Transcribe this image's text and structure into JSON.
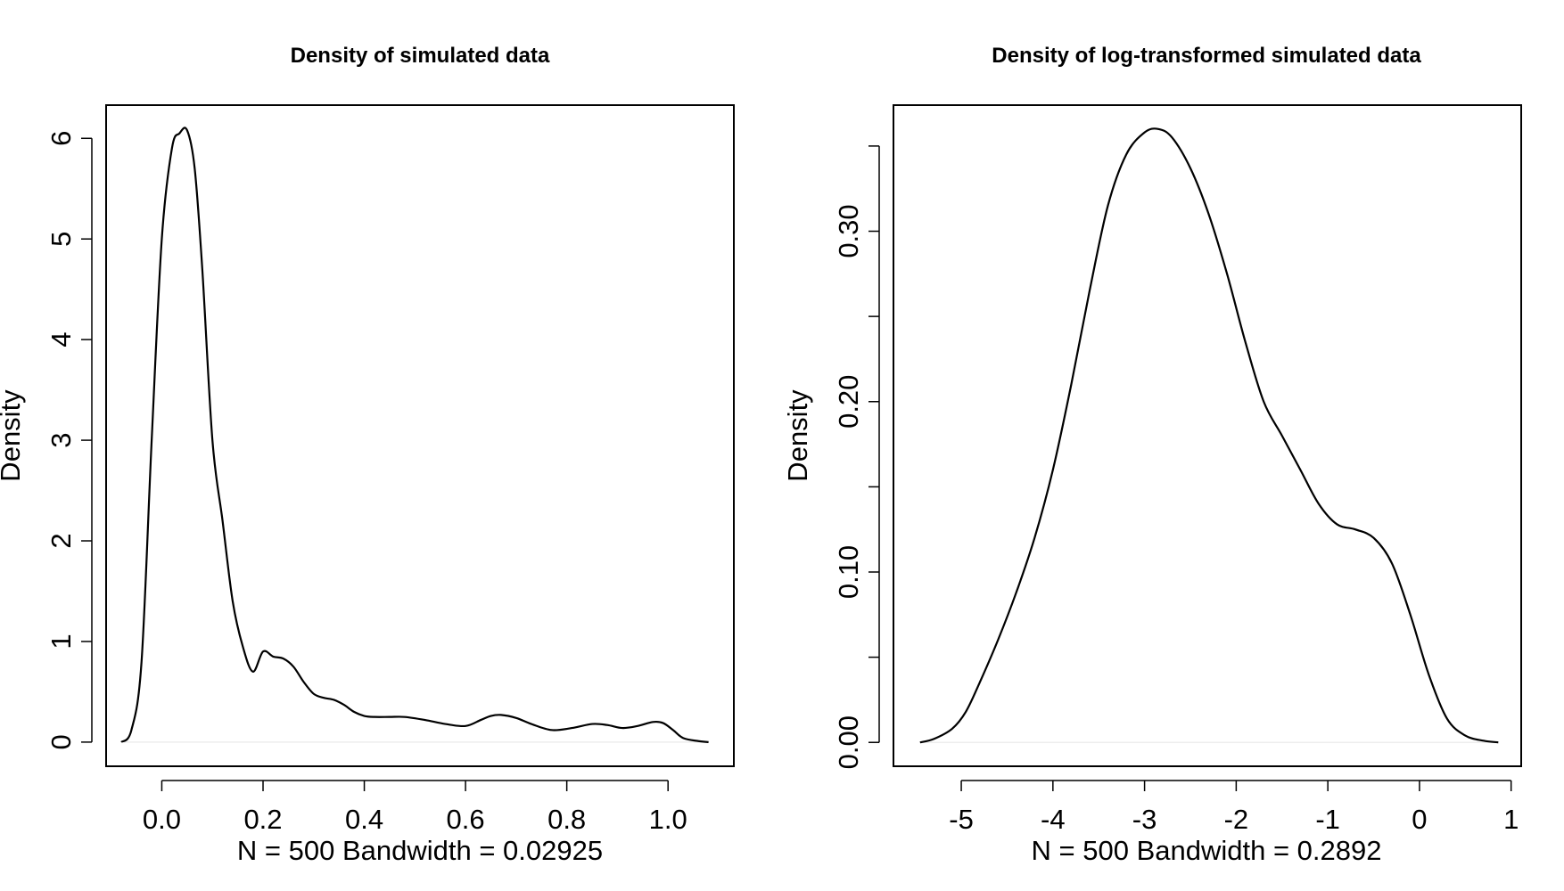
{
  "chart_data": [
    {
      "type": "line",
      "title": "Density of simulated data",
      "xlabel": "N = 500   Bandwidth = 0.02925",
      "ylabel": "Density",
      "xlim": [
        -0.11,
        1.13
      ],
      "ylim": [
        -0.24,
        6.33
      ],
      "x_ticks": [
        0.0,
        0.2,
        0.4,
        0.6,
        0.8,
        1.0
      ],
      "x_tick_labels": [
        "0.0",
        "0.2",
        "0.4",
        "0.6",
        "0.8",
        "1.0"
      ],
      "y_ticks": [
        0,
        1,
        2,
        3,
        4,
        5,
        6
      ],
      "y_tick_labels": [
        "0",
        "1",
        "2",
        "3",
        "4",
        "5",
        "6"
      ],
      "grid": false,
      "series": [
        {
          "x": [
            -0.08,
            -0.06,
            -0.04,
            -0.02,
            0.0,
            0.02,
            0.035,
            0.05,
            0.065,
            0.08,
            0.1,
            0.12,
            0.14,
            0.16,
            0.18,
            0.2,
            0.22,
            0.24,
            0.26,
            0.28,
            0.3,
            0.32,
            0.34,
            0.36,
            0.38,
            0.4,
            0.42,
            0.45,
            0.48,
            0.52,
            0.56,
            0.6,
            0.63,
            0.65,
            0.67,
            0.7,
            0.73,
            0.77,
            0.81,
            0.85,
            0.88,
            0.91,
            0.94,
            0.97,
            0.99,
            1.01,
            1.03,
            1.06,
            1.08
          ],
          "y": [
            0.0,
            0.12,
            0.8,
            3.0,
            5.0,
            5.9,
            6.05,
            6.08,
            5.7,
            4.7,
            3.0,
            2.2,
            1.4,
            0.95,
            0.7,
            0.9,
            0.85,
            0.83,
            0.75,
            0.6,
            0.48,
            0.44,
            0.42,
            0.37,
            0.3,
            0.26,
            0.25,
            0.25,
            0.25,
            0.22,
            0.18,
            0.16,
            0.22,
            0.26,
            0.27,
            0.24,
            0.18,
            0.12,
            0.14,
            0.18,
            0.17,
            0.14,
            0.16,
            0.2,
            0.19,
            0.12,
            0.04,
            0.01,
            0.0
          ]
        }
      ]
    },
    {
      "type": "line",
      "title": "Density of log-transformed simulated data",
      "xlabel": "N = 500   Bandwidth = 0.2892",
      "ylabel": "Density",
      "xlim": [
        -5.74,
        1.11
      ],
      "ylim": [
        -0.014,
        0.374
      ],
      "x_ticks": [
        -5,
        -4,
        -3,
        -2,
        -1,
        0,
        1
      ],
      "x_tick_labels": [
        "-5",
        "-4",
        "-3",
        "-2",
        "-1",
        "0",
        "1"
      ],
      "y_ticks": [
        0.0,
        0.05,
        0.1,
        0.15,
        0.2,
        0.25,
        0.3,
        0.35
      ],
      "y_tick_labels": [
        "0.00",
        "",
        "0.10",
        "",
        "0.20",
        "",
        "0.30",
        ""
      ],
      "grid": false,
      "series": [
        {
          "x": [
            -5.45,
            -5.3,
            -5.1,
            -4.95,
            -4.8,
            -4.6,
            -4.4,
            -4.2,
            -4.0,
            -3.8,
            -3.6,
            -3.4,
            -3.2,
            -3.0,
            -2.85,
            -2.7,
            -2.5,
            -2.3,
            -2.1,
            -1.9,
            -1.7,
            -1.5,
            -1.3,
            -1.1,
            -0.9,
            -0.7,
            -0.5,
            -0.3,
            -0.1,
            0.1,
            0.3,
            0.5,
            0.7,
            0.86
          ],
          "y": [
            0.0,
            0.002,
            0.008,
            0.018,
            0.035,
            0.06,
            0.088,
            0.12,
            0.16,
            0.21,
            0.265,
            0.315,
            0.345,
            0.358,
            0.36,
            0.355,
            0.337,
            0.31,
            0.275,
            0.235,
            0.2,
            0.18,
            0.16,
            0.14,
            0.128,
            0.125,
            0.12,
            0.105,
            0.075,
            0.04,
            0.014,
            0.004,
            0.001,
            0.0
          ]
        }
      ]
    }
  ]
}
